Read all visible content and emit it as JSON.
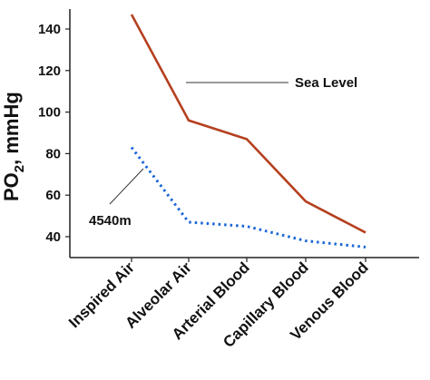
{
  "chart_data": {
    "type": "line",
    "ylabel_main": "PO",
    "ylabel_sub": "2",
    "ylabel_rest": ", mmHg",
    "categories": [
      "Inspired Air",
      "Alveolar Air",
      "Arterial Blood",
      "Capillary Blood",
      "Venous Blood"
    ],
    "yticks": [
      "40",
      "60",
      "80",
      "100",
      "120",
      "140"
    ],
    "ylim": [
      30,
      150
    ],
    "grid": false,
    "series": [
      {
        "name": "Sea Level",
        "values": [
          147,
          96,
          87,
          57,
          42
        ],
        "color": "#b5401f",
        "style": "solid"
      },
      {
        "name": "4540m",
        "values": [
          83,
          47,
          45,
          38,
          35
        ],
        "color": "#1a66d6",
        "style": "dotted"
      }
    ]
  }
}
